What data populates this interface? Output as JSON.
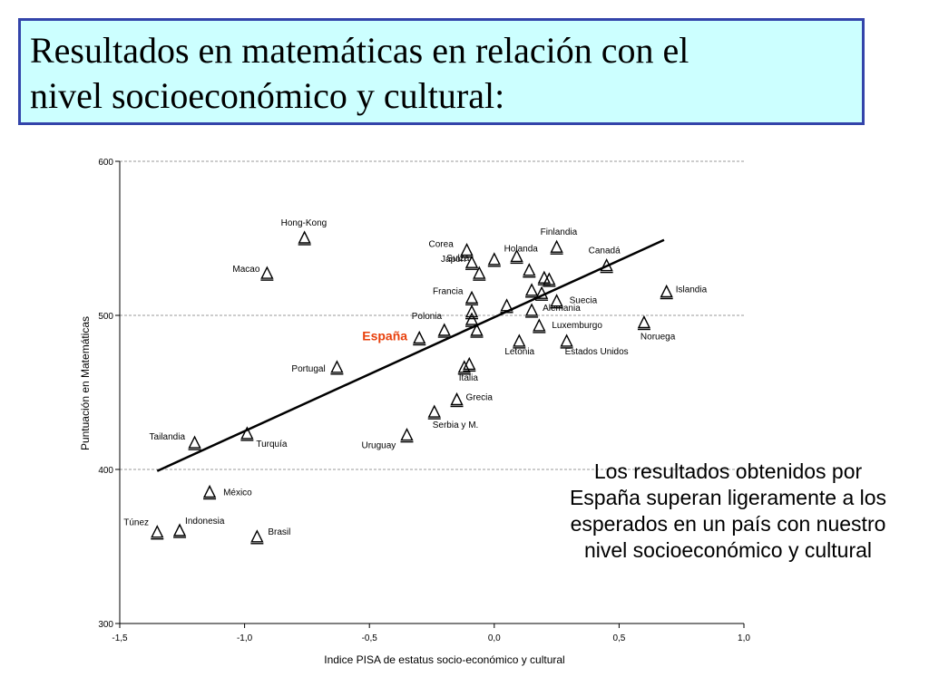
{
  "title_line1": "Resultados en matemáticas en relación con el",
  "title_line2": "nivel socioeconómico y cultural:",
  "note_text": "Los resultados obtenidos por España superan ligeramente a los esperados en un país con nuestro nivel socioeconómico y cultural",
  "colors": {
    "title_bg": "#ccffff",
    "title_border": "#3344aa",
    "highlight": "#e8400c"
  },
  "chart_data": {
    "type": "scatter",
    "title": "",
    "xlabel": "Indice PISA de estatus socio-económico y cultural",
    "ylabel": "Puntuación en Matemáticas",
    "xlim": [
      -1.5,
      1.0
    ],
    "ylim": [
      300,
      600
    ],
    "xticks": [
      "-1,5",
      "-1,0",
      "-0,5",
      "0,0",
      "0,5",
      "1,0"
    ],
    "yticks": [
      "300",
      "400",
      "500",
      "600"
    ],
    "grid": "horizontal dashed",
    "marker": "triangle",
    "trendline": {
      "x1": -1.35,
      "y1": 399,
      "x2": 0.68,
      "y2": 549
    },
    "points": [
      {
        "label": "Hong-Kong",
        "x": -0.76,
        "y": 550
      },
      {
        "label": "Macao",
        "x": -0.91,
        "y": 527
      },
      {
        "label": "Finlandia",
        "x": 0.25,
        "y": 544
      },
      {
        "label": "Corea",
        "x": -0.11,
        "y": 542
      },
      {
        "label": "Holanda",
        "x": 0.09,
        "y": 538
      },
      {
        "label": "Canadá",
        "x": 0.45,
        "y": 532
      },
      {
        "label": "Japón",
        "x": -0.09,
        "y": 534
      },
      {
        "label": "",
        "x": 0.0,
        "y": 536
      },
      {
        "label": "Suiza",
        "x": -0.06,
        "y": 527
      },
      {
        "label": "",
        "x": 0.14,
        "y": 529
      },
      {
        "label": "",
        "x": 0.2,
        "y": 524
      },
      {
        "label": "",
        "x": 0.22,
        "y": 523
      },
      {
        "label": "",
        "x": 0.15,
        "y": 516
      },
      {
        "label": "",
        "x": 0.19,
        "y": 514
      },
      {
        "label": "Islandia",
        "x": 0.69,
        "y": 515
      },
      {
        "label": "Francia",
        "x": -0.09,
        "y": 511
      },
      {
        "label": "Suecia",
        "x": 0.25,
        "y": 509
      },
      {
        "label": "",
        "x": 0.05,
        "y": 506
      },
      {
        "label": "Alemania",
        "x": 0.15,
        "y": 503
      },
      {
        "label": "",
        "x": -0.09,
        "y": 502
      },
      {
        "label": "Polonia",
        "x": -0.2,
        "y": 490
      },
      {
        "label": "",
        "x": -0.09,
        "y": 497
      },
      {
        "label": "Luxemburgo",
        "x": 0.18,
        "y": 493
      },
      {
        "label": "Noruega",
        "x": 0.6,
        "y": 495
      },
      {
        "label": "",
        "x": -0.07,
        "y": 490
      },
      {
        "label": "España",
        "x": -0.3,
        "y": 485,
        "highlight": true
      },
      {
        "label": "Letonia",
        "x": 0.1,
        "y": 483
      },
      {
        "label": "Estados Unidos",
        "x": 0.29,
        "y": 483
      },
      {
        "label": "",
        "x": -0.1,
        "y": 468
      },
      {
        "label": "Portugal",
        "x": -0.63,
        "y": 466
      },
      {
        "label": "Italia",
        "x": -0.12,
        "y": 466
      },
      {
        "label": "Grecia",
        "x": -0.15,
        "y": 445
      },
      {
        "label": "Serbia y M.",
        "x": -0.24,
        "y": 437
      },
      {
        "label": "Uruguay",
        "x": -0.35,
        "y": 422
      },
      {
        "label": "Turquía",
        "x": -0.99,
        "y": 423
      },
      {
        "label": "Tailandia",
        "x": -1.2,
        "y": 417
      },
      {
        "label": "México",
        "x": -1.14,
        "y": 385
      },
      {
        "label": "Túnez",
        "x": -1.35,
        "y": 359
      },
      {
        "label": "Indonesia",
        "x": -1.26,
        "y": 360
      },
      {
        "label": "Brasil",
        "x": -0.95,
        "y": 356
      }
    ]
  }
}
